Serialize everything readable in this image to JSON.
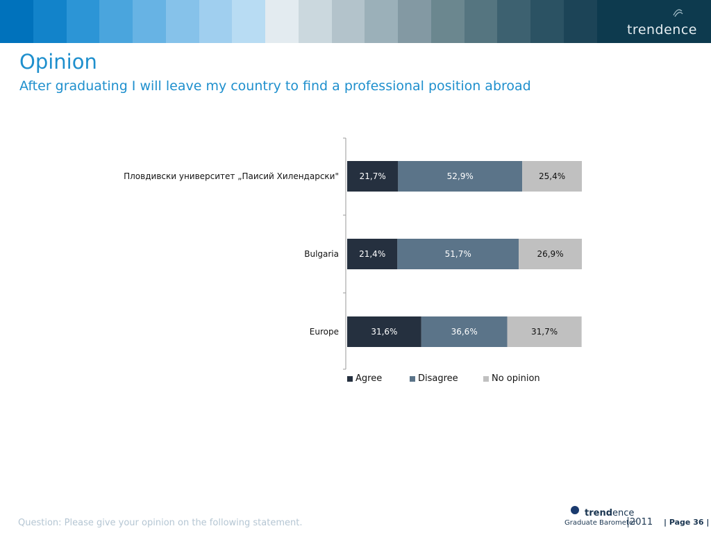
{
  "header": {
    "brand": "trendence",
    "band_colors": [
      "#0072bc",
      "#1283ca",
      "#2c95d6",
      "#4aa5dd",
      "#67b3e4",
      "#86c2ea",
      "#a0cfef",
      "#b8dcf3",
      "#e3ebf0",
      "#cbd8de",
      "#b3c3cb",
      "#9bb0b9",
      "#8399a3",
      "#6b878f",
      "#557580",
      "#3d6170",
      "#2b5263",
      "#1c4457"
    ]
  },
  "title": "Opinion",
  "subtitle": "After graduating I will leave my country to find a professional position abroad",
  "chart_data": {
    "type": "bar",
    "orientation": "horizontal",
    "stacked": true,
    "percent_stacked": true,
    "categories": [
      "Пловдивски университет „Паисий Хилендарски\"",
      "Bulgaria",
      "Europe"
    ],
    "series": [
      {
        "name": "Agree",
        "color": "#25303f",
        "values": [
          21.7,
          21.4,
          31.6
        ],
        "labels": [
          "21,7%",
          "21,4%",
          "31,6%"
        ]
      },
      {
        "name": "Disagree",
        "color": "#5b7489",
        "values": [
          52.9,
          51.7,
          36.6
        ],
        "labels": [
          "52,9%",
          "51,7%",
          "36,6%"
        ]
      },
      {
        "name": "No opinion",
        "color": "#c0c0c0",
        "values": [
          25.4,
          26.9,
          31.7
        ],
        "labels": [
          "25,4%",
          "26,9%",
          "31,7%"
        ]
      }
    ],
    "xlim": [
      0,
      100
    ],
    "legend_position": "bottom",
    "grid": false
  },
  "footer": {
    "question": "Question: Please give your opinion on the following statement.",
    "logo_brand_bold": "trend",
    "logo_brand_light": "ence",
    "logo_subtitle": "Graduate Barometer",
    "logo_year": "2011",
    "page": "| Page 36 |"
  }
}
